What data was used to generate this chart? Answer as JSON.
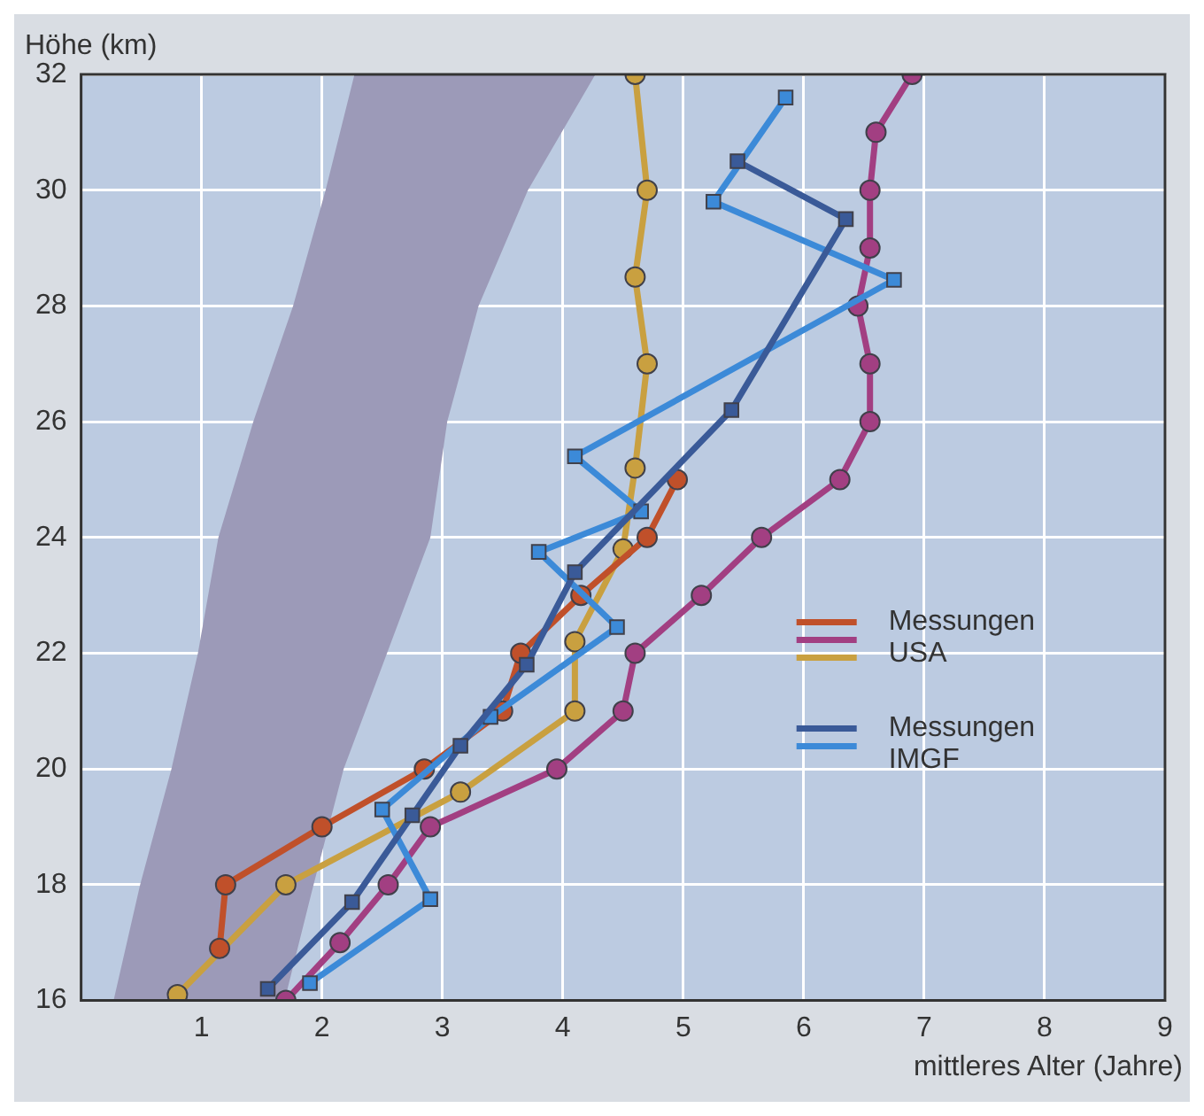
{
  "chart_data": {
    "type": "line",
    "ylabel": "Höhe (km)",
    "xlabel": "mittleres Alter (Jahre)",
    "xlim": [
      0,
      9
    ],
    "xticks": [
      1,
      2,
      3,
      4,
      5,
      6,
      7,
      8,
      9
    ],
    "ylim": [
      16,
      32
    ],
    "yticks": [
      16,
      18,
      20,
      22,
      24,
      26,
      28,
      30,
      32
    ],
    "grid": true,
    "legend": "right",
    "line_style": "solid",
    "series": [
      {
        "type": "area",
        "color": "#9c9ab8",
        "x": [
          0.27,
          0.49,
          0.75,
          0.97,
          1.14,
          1.43,
          1.76,
          2.03,
          2.27,
          4.27,
          3.71,
          3.3,
          3.04,
          2.9,
          2.54,
          2.18,
          1.93,
          1.69
        ],
        "values": [
          16,
          18,
          20,
          22,
          24,
          26,
          28,
          30,
          32,
          32,
          30,
          28,
          26,
          24,
          22,
          20,
          18,
          16
        ]
      },
      {
        "name": "Messungen USA",
        "color": "#c0502a",
        "marker": "circle",
        "x": [
          1.15,
          1.2,
          2.0,
          2.85,
          3.5,
          3.65,
          4.15,
          4.7,
          4.95
        ],
        "values": [
          16.9,
          18,
          19,
          20,
          21,
          22,
          23,
          24,
          25
        ]
      },
      {
        "color": "#a23f82",
        "marker": "circle",
        "x": [
          1.7,
          2.15,
          2.55,
          2.9,
          3.95,
          4.5,
          4.6,
          5.15,
          5.65,
          6.3,
          6.55,
          6.55,
          6.45,
          6.55,
          6.55,
          6.6,
          6.9
        ],
        "values": [
          16,
          17,
          18,
          19,
          20,
          21,
          22,
          23,
          24,
          25,
          26,
          27,
          28,
          29,
          30,
          31,
          32
        ]
      },
      {
        "color": "#c9a040",
        "marker": "circle",
        "x": [
          0.8,
          1.7,
          3.15,
          4.1,
          4.1,
          4.5,
          4.6,
          4.7,
          4.6,
          4.7,
          4.6
        ],
        "values": [
          16.1,
          18,
          19.6,
          21,
          22.2,
          23.8,
          25.2,
          27,
          28.5,
          30,
          32
        ]
      },
      {
        "name": "Messungen IMGF",
        "color": "#3a5a98",
        "marker": "square",
        "x": [
          1.55,
          2.25,
          2.75,
          3.15,
          3.7,
          4.1,
          5.4,
          6.35,
          5.45
        ],
        "values": [
          16.2,
          17.7,
          19.2,
          20.4,
          21.8,
          23.4,
          26.2,
          29.5,
          30.5
        ]
      },
      {
        "color": "#3c8ad8",
        "marker": "square",
        "x": [
          1.9,
          2.9,
          2.5,
          3.4,
          4.45,
          3.8,
          4.65,
          4.1,
          6.75,
          5.25,
          5.85
        ],
        "values": [
          16.3,
          17.75,
          19.3,
          20.9,
          22.45,
          23.75,
          24.45,
          25.4,
          28.45,
          29.8,
          31.6
        ]
      }
    ]
  }
}
